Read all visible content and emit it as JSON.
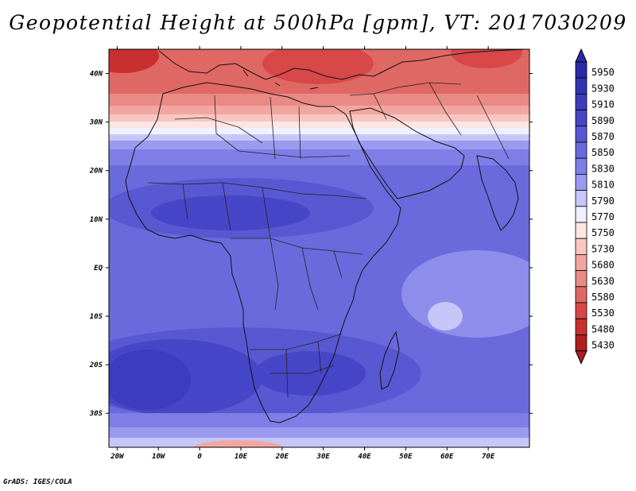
{
  "title": "Geopotential Height at 500hPa [gpm], VT: 2017030209",
  "credit": "GrADS: IGES/COLA",
  "variable": "Geopotential Height",
  "level": "500hPa",
  "units": "gpm",
  "valid_time": "2017030209",
  "map": {
    "lon_labels": [
      "20W",
      "10W",
      "0",
      "10E",
      "20E",
      "30E",
      "40E",
      "50E",
      "60E",
      "70E"
    ],
    "lon_values": [
      -20,
      -10,
      0,
      10,
      20,
      30,
      40,
      50,
      60,
      70
    ],
    "lat_labels": [
      "40N",
      "30N",
      "20N",
      "10N",
      "EQ",
      "10S",
      "20S",
      "30S"
    ],
    "lat_values": [
      40,
      30,
      20,
      10,
      0,
      -10,
      -20,
      -30
    ],
    "lon_range": [
      -22,
      80
    ],
    "lat_range": [
      -37,
      45
    ]
  },
  "colorbar": {
    "levels": [
      "5950",
      "5930",
      "5910",
      "5890",
      "5870",
      "5850",
      "5830",
      "5810",
      "5790",
      "5770",
      "5750",
      "5730",
      "5680",
      "5630",
      "5580",
      "5530",
      "5480",
      "5430"
    ],
    "colors": [
      "#2a2aa8",
      "#3232b4",
      "#3c3cbe",
      "#4646c8",
      "#5858d2",
      "#6a6add",
      "#7e7ee6",
      "#9a9af0",
      "#c6c6f8",
      "#f0f0ff",
      "#fce6e4",
      "#f8c6c2",
      "#f2a6a0",
      "#ea8a84",
      "#e06864",
      "#d84848",
      "#c83030",
      "#b01e1e"
    ]
  },
  "features": [
    {
      "name": "height-maximum-southern-atlantic",
      "lon": -10,
      "lat": -20,
      "level": "5890"
    },
    {
      "name": "height-minimum-northwest",
      "lon": -18,
      "lat": 43,
      "level": "5480"
    },
    {
      "name": "height-minimum-mediterranean",
      "lon": 30,
      "lat": 40,
      "level": "5530"
    },
    {
      "name": "height-minimum-central-asia",
      "lon": 71,
      "lat": 43,
      "level": "5530"
    }
  ]
}
